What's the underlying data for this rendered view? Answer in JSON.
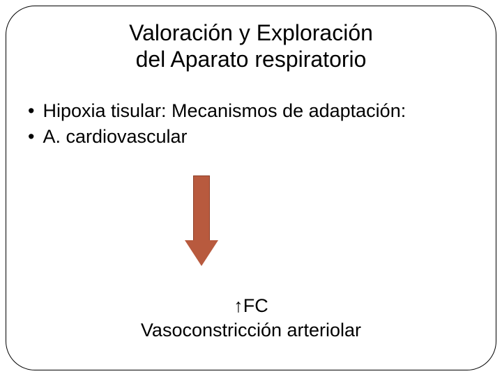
{
  "slide": {
    "title_line1": "Valoración y Exploración",
    "title_line2": "del Aparato respiratorio",
    "bullets": [
      {
        "marker": "•",
        "text": "Hipoxia tisular: Mecanismos de adaptación:"
      },
      {
        "marker": "•",
        "text": " A. cardiovascular"
      }
    ],
    "bottom_line1": "↑FC",
    "bottom_line2": "Vasoconstricción arteriolar"
  },
  "style": {
    "arrow_fill": "#b85a3e",
    "arrow_border": "#8d3f28",
    "arrow_head_border_top": "37px solid #b85a3e",
    "frame_border_color": "#000000",
    "frame_border_radius": "42px",
    "text_color": "#000000",
    "title_fontsize": 32,
    "body_fontsize": 27,
    "background_color": "#ffffff"
  }
}
